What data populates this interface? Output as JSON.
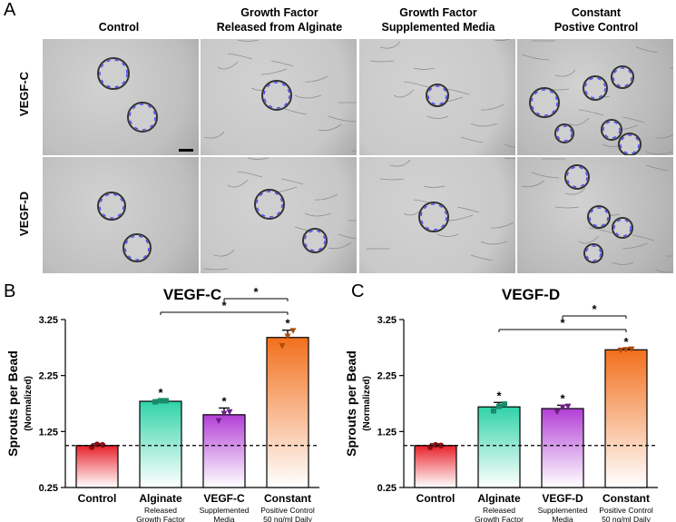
{
  "panels": {
    "a": "A",
    "b": "B",
    "c": "C"
  },
  "micrograph": {
    "columns": [
      "Control",
      "Growth Factor\nReleased from Alginate",
      "Growth Factor\nSupplemented Media",
      "Constant\nPostive Control"
    ],
    "rows": [
      "VEGF-C",
      "VEGF-D"
    ]
  },
  "colors": {
    "control": "#e8202a",
    "alginate": "#2fd3a8",
    "supplemented": "#b23fd6",
    "constant": "#f26f1b"
  },
  "chart_data": [
    {
      "type": "bar",
      "title": "VEGF-C",
      "ylabel": "Sprouts per Bead",
      "ylabel_sub": "(Normalized)",
      "ylim": [
        0.25,
        3.25
      ],
      "yticks": [
        "0.25",
        "1.25",
        "2.25",
        "3.25"
      ],
      "reference_line": 1.0,
      "categories": [
        "Control",
        "Alginate",
        "VEGF-C",
        "Constant"
      ],
      "category_sublabels": [
        "",
        "Released\nGrowth Factor",
        "Supplemented\nMedia",
        "Positive Control\n50 ng/ml Daily"
      ],
      "values": [
        1.0,
        1.79,
        1.55,
        2.93
      ],
      "errors": [
        0.03,
        0.03,
        0.12,
        0.13
      ],
      "points": [
        [
          0.97,
          1.02,
          1.01
        ],
        [
          1.78,
          1.8,
          1.8
        ],
        [
          1.44,
          1.57,
          1.6
        ],
        [
          2.78,
          2.95,
          3.05
        ]
      ],
      "significance_marks": [
        "",
        "*",
        "*",
        "*"
      ],
      "brackets": [
        {
          "from": 2,
          "to": 3,
          "label": "*"
        },
        {
          "from": 1,
          "to": 3,
          "label": "*"
        }
      ]
    },
    {
      "type": "bar",
      "title": "VEGF-D",
      "ylabel": "Sprouts per Bead",
      "ylabel_sub": "(Normalized)",
      "ylim": [
        0.25,
        3.25
      ],
      "yticks": [
        "0.25",
        "1.25",
        "2.25",
        "3.25"
      ],
      "reference_line": 1.0,
      "categories": [
        "Control",
        "Alginate",
        "VEGF-D",
        "Constant"
      ],
      "category_sublabels": [
        "",
        "Released\nGrowth Factor",
        "Supplemented\nMedia",
        "Positive Control\n50 ng/ml Daily"
      ],
      "values": [
        1.0,
        1.69,
        1.66,
        2.71
      ],
      "errors": [
        0.03,
        0.08,
        0.06,
        0.02
      ],
      "points": [
        [
          0.97,
          1.01,
          1.0
        ],
        [
          1.62,
          1.7,
          1.74
        ],
        [
          1.6,
          1.68,
          1.7
        ],
        [
          2.7,
          2.71,
          2.72
        ]
      ],
      "significance_marks": [
        "",
        "*",
        "*",
        "*"
      ],
      "brackets": [
        {
          "from": 2,
          "to": 3,
          "label": "*"
        },
        {
          "from": 1,
          "to": 3,
          "label": "*"
        }
      ]
    }
  ]
}
